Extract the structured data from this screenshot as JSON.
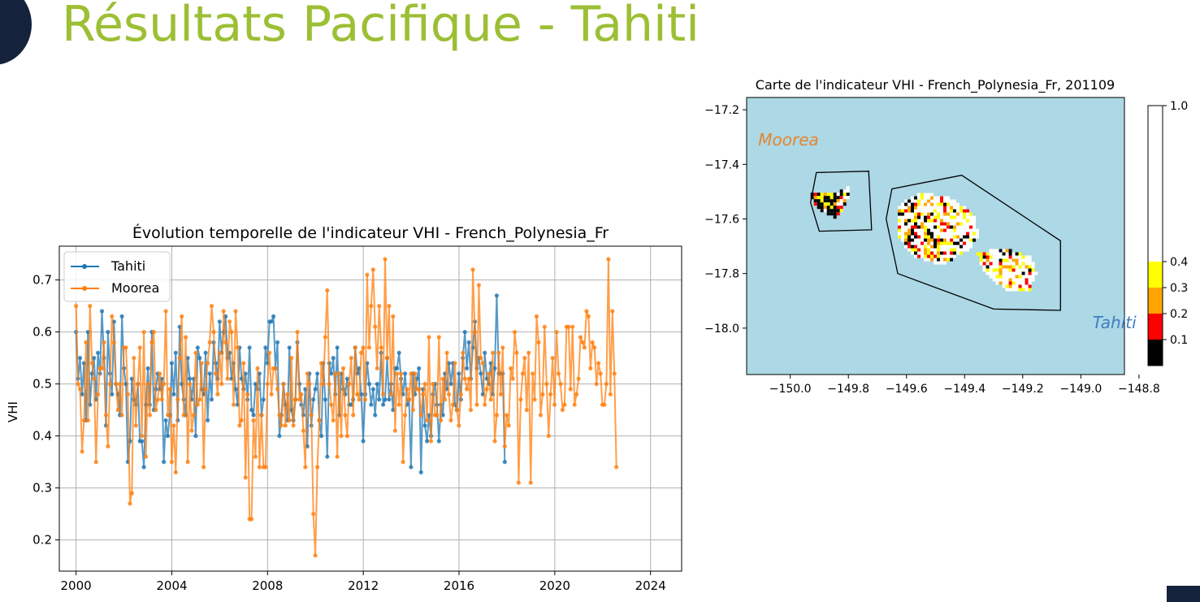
{
  "slide": {
    "title": "Résultats Pacifique - Tahiti"
  },
  "chart_data": [
    {
      "type": "line",
      "title": "Évolution temporelle de l'indicateur VHI - French_Polynesia_Fr",
      "xlabel": "",
      "ylabel": "VHI",
      "xlim": [
        1999.3,
        2025.3
      ],
      "ylim": [
        0.14,
        0.765
      ],
      "x_ticks": [
        "2000",
        "2004",
        "2008",
        "2012",
        "2016",
        "2020",
        "2024"
      ],
      "y_ticks": [
        "0.2",
        "0.3",
        "0.4",
        "0.5",
        "0.6",
        "0.7"
      ],
      "grid": true,
      "legend_position": "top-left",
      "x_start": 2000.0,
      "x_step": 0.0833,
      "series": [
        {
          "name": "Tahiti",
          "color": "#1f77b4",
          "values": [
            0.6,
            0.51,
            0.55,
            0.48,
            0.54,
            0.43,
            0.6,
            0.46,
            0.52,
            0.55,
            0.47,
            0.56,
            0.52,
            0.64,
            0.55,
            0.42,
            0.6,
            0.52,
            0.48,
            0.62,
            0.5,
            0.48,
            0.44,
            0.63,
            0.53,
            0.5,
            0.35,
            0.39,
            0.51,
            0.47,
            0.46,
            0.5,
            0.39,
            0.39,
            0.34,
            0.46,
            0.53,
            0.46,
            0.6,
            0.45,
            0.49,
            0.52,
            0.49,
            0.51,
            0.35,
            0.43,
            0.4,
            0.44,
            0.54,
            0.48,
            0.56,
            0.43,
            0.61,
            0.5,
            0.47,
            0.44,
            0.55,
            0.51,
            0.47,
            0.51,
            0.4,
            0.57,
            0.55,
            0.49,
            0.48,
            0.56,
            0.43,
            0.52,
            0.47,
            0.58,
            0.54,
            0.51,
            0.62,
            0.56,
            0.6,
            0.63,
            0.55,
            0.56,
            0.51,
            0.54,
            0.49,
            0.46,
            0.57,
            0.51,
            0.49,
            0.52,
            0.47,
            0.57,
            0.45,
            0.44,
            0.5,
            0.49,
            0.52,
            0.44,
            0.47,
            0.57,
            0.54,
            0.62,
            0.62,
            0.63,
            0.53,
            0.58,
            0.4,
            0.44,
            0.5,
            0.46,
            0.43,
            0.57,
            0.45,
            0.43,
            0.47,
            0.58,
            0.5,
            0.46,
            0.44,
            0.49,
            0.38,
            0.52,
            0.42,
            0.47,
            0.49,
            0.52,
            0.43,
            0.4,
            0.54,
            0.47,
            0.36,
            0.54,
            0.52,
            0.55,
            0.48,
            0.57,
            0.44,
            0.52,
            0.49,
            0.48,
            0.51,
            0.46,
            0.46,
            0.47,
            0.57,
            0.52,
            0.53,
            0.48,
            0.39,
            0.48,
            0.54,
            0.5,
            0.46,
            0.49,
            0.44,
            0.5,
            0.47,
            0.56,
            0.46,
            0.47,
            0.55,
            0.47,
            0.5,
            0.45,
            0.53,
            0.53,
            0.56,
            0.51,
            0.48,
            0.52,
            0.46,
            0.47,
            0.34,
            0.52,
            0.48,
            0.51,
            0.53,
            0.33,
            0.49,
            0.42,
            0.39,
            0.44,
            0.4,
            0.48,
            0.5,
            0.46,
            0.39,
            0.46,
            0.44,
            0.52,
            0.49,
            0.54,
            0.5,
            0.54,
            0.46,
            0.45,
            0.52,
            0.47,
            0.55,
            0.6,
            0.53,
            0.58,
            0.51,
            0.57,
            0.62,
            0.53,
            0.55,
            0.52,
            0.48,
            0.56,
            0.51,
            0.5,
            0.54,
            0.48,
            0.53,
            0.67,
            0.52,
            0.52,
            0.52,
            0.35
          ]
        },
        {
          "name": "Moorea",
          "color": "#ff7f0e",
          "values": [
            0.65,
            0.5,
            0.49,
            0.37,
            0.43,
            0.58,
            0.43,
            0.65,
            0.54,
            0.51,
            0.35,
            0.48,
            0.53,
            0.53,
            0.58,
            0.44,
            0.38,
            0.5,
            0.63,
            0.58,
            0.5,
            0.45,
            0.5,
            0.44,
            0.57,
            0.57,
            0.48,
            0.27,
            0.29,
            0.55,
            0.42,
            0.5,
            0.57,
            0.4,
            0.6,
            0.36,
            0.5,
            0.44,
            0.58,
            0.6,
            0.45,
            0.47,
            0.52,
            0.47,
            0.5,
            0.64,
            0.44,
            0.49,
            0.35,
            0.42,
            0.33,
            0.47,
            0.55,
            0.63,
            0.44,
            0.59,
            0.35,
            0.5,
            0.41,
            0.44,
            0.56,
            0.46,
            0.47,
            0.54,
            0.34,
            0.49,
            0.54,
            0.58,
            0.65,
            0.6,
            0.52,
            0.48,
            0.56,
            0.5,
            0.64,
            0.58,
            0.51,
            0.62,
            0.6,
            0.46,
            0.64,
            0.57,
            0.42,
            0.43,
            0.54,
            0.32,
            0.48,
            0.24,
            0.24,
            0.43,
            0.36,
            0.53,
            0.34,
            0.44,
            0.34,
            0.34,
            0.5,
            0.56,
            0.48,
            0.53,
            0.53,
            0.49,
            0.44,
            0.42,
            0.5,
            0.42,
            0.48,
            0.43,
            0.55,
            0.42,
            0.47,
            0.6,
            0.47,
            0.48,
            0.41,
            0.34,
            0.52,
            0.5,
            0.44,
            0.25,
            0.17,
            0.34,
            0.43,
            0.54,
            0.5,
            0.59,
            0.68,
            0.5,
            0.46,
            0.43,
            0.52,
            0.36,
            0.52,
            0.4,
            0.53,
            0.44,
            0.4,
            0.5,
            0.55,
            0.44,
            0.57,
            0.48,
            0.47,
            0.56,
            0.57,
            0.47,
            0.71,
            0.57,
            0.65,
            0.72,
            0.61,
            0.53,
            0.65,
            0.57,
            0.48,
            0.74,
            0.55,
            0.65,
            0.48,
            0.63,
            0.41,
            0.52,
            0.46,
            0.52,
            0.35,
            0.44,
            0.49,
            0.47,
            0.52,
            0.45,
            0.52,
            0.49,
            0.49,
            0.44,
            0.48,
            0.5,
            0.43,
            0.59,
            0.39,
            0.5,
            0.44,
            0.44,
            0.59,
            0.43,
            0.51,
            0.47,
            0.56,
            0.48,
            0.43,
            0.46,
            0.54,
            0.45,
            0.42,
            0.48,
            0.56,
            0.51,
            0.49,
            0.51,
            0.45,
            0.72,
            0.6,
            0.46,
            0.69,
            0.55,
            0.54,
            0.46,
            0.49,
            0.52,
            0.47,
            0.56,
            0.39,
            0.44,
            0.56,
            0.48,
            0.57,
            0.38,
            0.44,
            0.42,
            0.53,
            0.51,
            0.6,
            0.56,
            0.31,
            0.47,
            0.52,
            0.55,
            0.45,
            0.56,
            0.31,
            0.52,
            0.47,
            0.63,
            0.58,
            0.44,
            0.48,
            0.61,
            0.5,
            0.4,
            0.48,
            0.55,
            0.46,
            0.6,
            0.52,
            0.5,
            0.45,
            0.46,
            0.61,
            0.61,
            0.49,
            0.61,
            0.46,
            0.48,
            0.51,
            0.59,
            0.58,
            0.57,
            0.64,
            0.63,
            0.53,
            0.58,
            0.57,
            0.5,
            0.54,
            0.52,
            0.46,
            0.46,
            0.5,
            0.74,
            0.48,
            0.64,
            0.52,
            0.34
          ]
        }
      ]
    },
    {
      "type": "heatmap",
      "title": "Carte de l'indicateur VHI - French_Polynesia_Fr, 201109",
      "xlabel": "",
      "ylabel": "",
      "xlim": [
        -150.15,
        -148.85
      ],
      "ylim": [
        -18.17,
        -17.155
      ],
      "x_ticks": [
        "−150.0",
        "−149.8",
        "−149.6",
        "−149.4",
        "−149.2",
        "−149.0",
        "−148.8"
      ],
      "y_ticks": [
        "−17.2",
        "−17.4",
        "−17.6",
        "−17.8",
        "−18.0"
      ],
      "background_color": "#add8e6",
      "annotations": [
        {
          "text": "Moorea",
          "lon": -150.11,
          "lat": -17.33,
          "color": "#e4862e"
        },
        {
          "text": "Tahiti",
          "lon": -148.96,
          "lat": -18.0,
          "color": "#3e7fc1"
        }
      ],
      "colorbar": {
        "ticks": [
          "0.1",
          "0.2",
          "0.3",
          "0.4",
          "1.0"
        ],
        "bins": [
          {
            "from": 0.0,
            "to": 0.1,
            "color": "#000000"
          },
          {
            "from": 0.1,
            "to": 0.2,
            "color": "#ff0000"
          },
          {
            "from": 0.2,
            "to": 0.3,
            "color": "#ffa500"
          },
          {
            "from": 0.3,
            "to": 0.4,
            "color": "#ffff00"
          },
          {
            "from": 0.4,
            "to": 1.0,
            "color": "#ffffff"
          }
        ]
      },
      "moorea_polygon": [
        [
          -149.93,
          -17.54
        ],
        [
          -149.91,
          -17.43
        ],
        [
          -149.73,
          -17.425
        ],
        [
          -149.72,
          -17.64
        ],
        [
          -149.9,
          -17.645
        ]
      ],
      "tahiti_polygon": [
        [
          -149.65,
          -17.49
        ],
        [
          -149.41,
          -17.44
        ],
        [
          -149.07,
          -17.68
        ],
        [
          -149.07,
          -17.935
        ],
        [
          -149.3,
          -17.93
        ],
        [
          -149.63,
          -17.8
        ],
        [
          -149.67,
          -17.6
        ]
      ],
      "moorea_island_polygon": [
        [
          -149.93,
          -17.5
        ],
        [
          -149.84,
          -17.51
        ],
        [
          -149.8,
          -17.48
        ],
        [
          -149.8,
          -17.53
        ],
        [
          -149.84,
          -17.6
        ],
        [
          -149.88,
          -17.58
        ],
        [
          -149.92,
          -17.55
        ]
      ],
      "tahiti_island_polygon": [
        [
          -149.63,
          -17.55
        ],
        [
          -149.55,
          -17.505
        ],
        [
          -149.45,
          -17.52
        ],
        [
          -149.37,
          -17.58
        ],
        [
          -149.35,
          -17.66
        ],
        [
          -149.38,
          -17.71
        ],
        [
          -149.48,
          -17.77
        ],
        [
          -149.58,
          -17.735
        ],
        [
          -149.63,
          -17.66
        ]
      ],
      "tahiti_iti_polygon": [
        [
          -149.36,
          -17.72
        ],
        [
          -149.25,
          -17.71
        ],
        [
          -149.17,
          -17.74
        ],
        [
          -149.15,
          -17.8
        ],
        [
          -149.18,
          -17.87
        ],
        [
          -149.26,
          -17.86
        ],
        [
          -149.33,
          -17.8
        ]
      ]
    }
  ]
}
